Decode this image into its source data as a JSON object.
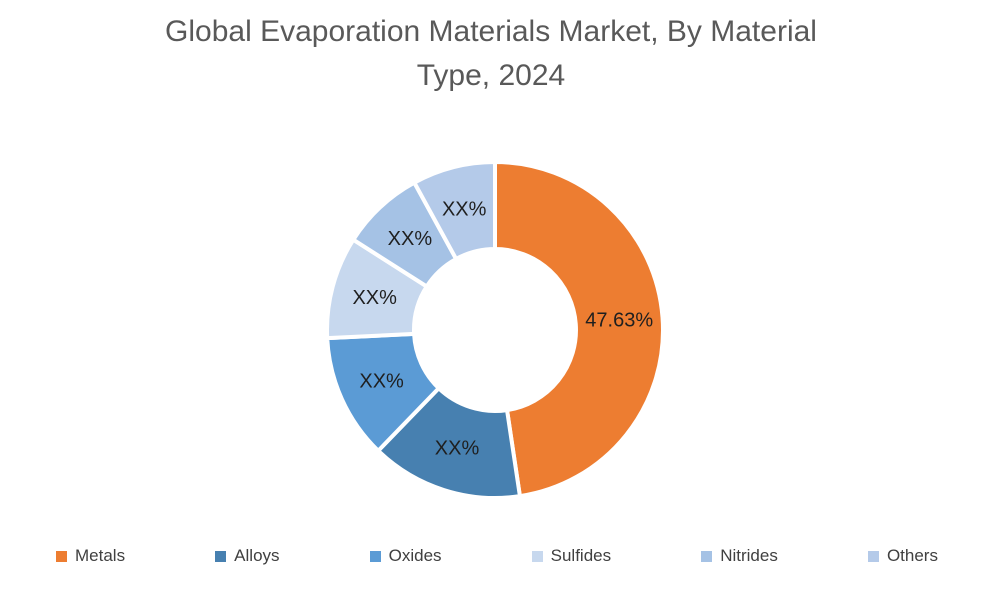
{
  "header": {
    "title_lines": [
      "Global Evaporation Materials Market, By Material",
      "Type, 2024"
    ]
  },
  "chart_data": {
    "type": "pie",
    "subtype": "donut",
    "title": "Global Evaporation Materials Market, By Material Type, 2024",
    "unit": "%",
    "start_angle_deg": 0,
    "direction": "clockwise",
    "inner_radius_ratio": 0.48,
    "legend_position": "bottom",
    "segments": [
      {
        "name": "Metals",
        "label": "47.63%",
        "value": 47.63,
        "color": "#ED7D31"
      },
      {
        "name": "Alloys",
        "label": "XX%",
        "value": 14.6,
        "color": "#4780B0"
      },
      {
        "name": "Oxides",
        "label": "XX%",
        "value": 12.0,
        "color": "#5B9BD5"
      },
      {
        "name": "Sulfides",
        "label": "XX%",
        "value": 9.8,
        "color": "#C7D8EE"
      },
      {
        "name": "Nitrides",
        "label": "XX%",
        "value": 8.0,
        "color": "#A5C2E5"
      },
      {
        "name": "Others",
        "label": "XX%",
        "value": 7.97,
        "color": "#B4CAE9"
      }
    ]
  }
}
